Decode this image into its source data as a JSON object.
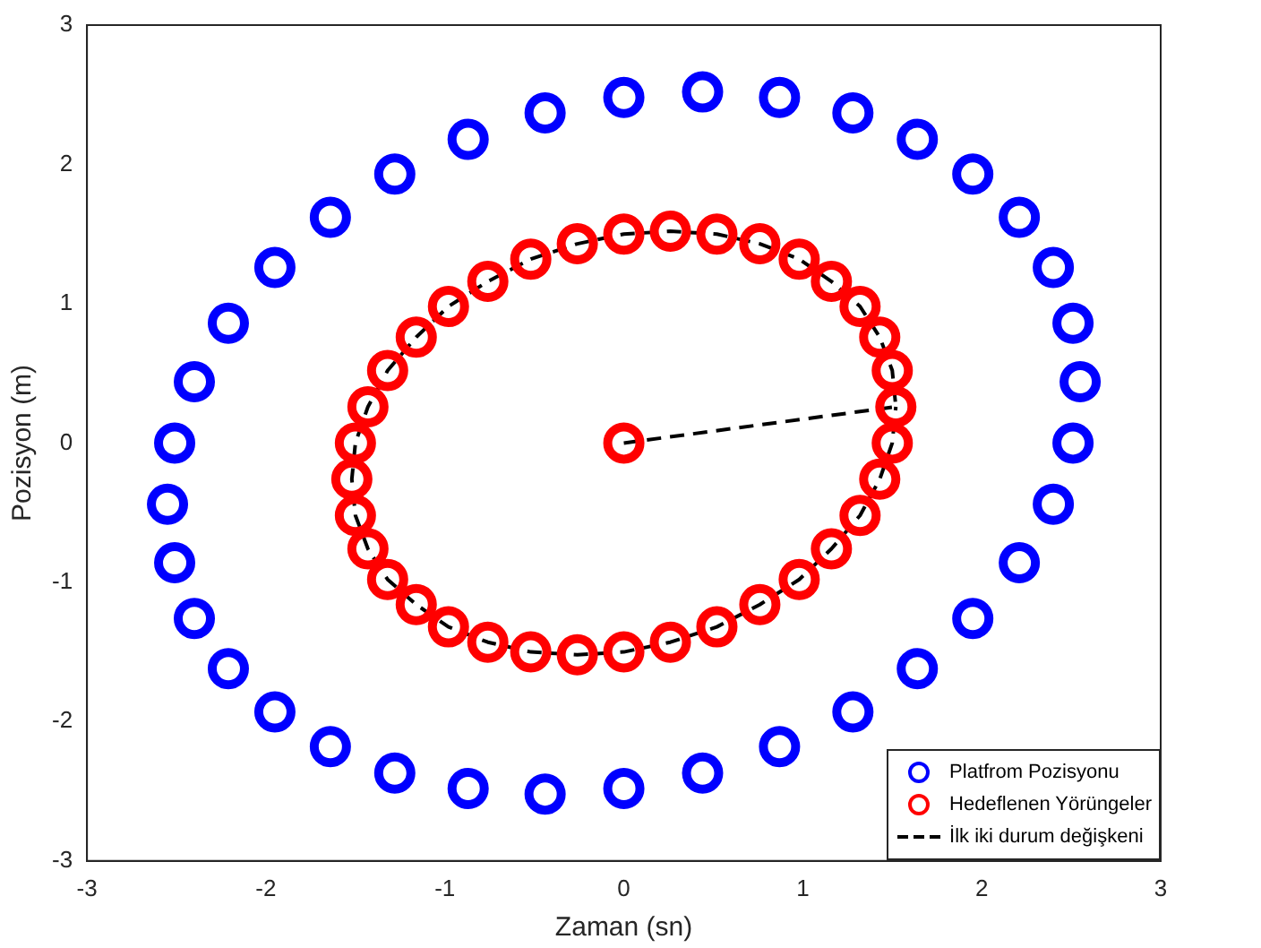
{
  "chart_data": {
    "type": "scatter",
    "xlabel": "Zaman (sn)",
    "ylabel": "Pozisyon (m)",
    "xlim": [
      -3,
      3
    ],
    "ylim": [
      -3,
      3
    ],
    "xticks": [
      -3,
      -2,
      -1,
      0,
      1,
      2,
      3
    ],
    "yticks": [
      -3,
      -2,
      -1,
      0,
      1,
      2,
      3
    ],
    "grid": false,
    "legend": "bottom right",
    "series": [
      {
        "name": "Platfrom Pozisyonu",
        "color": "#0000ff",
        "marker": "circle",
        "x": [
          2.55,
          2.51,
          2.4,
          2.21,
          1.95,
          1.64,
          1.28,
          0.87,
          0.44,
          0,
          -0.44,
          -0.87,
          -1.28,
          -1.64,
          -1.95,
          -2.21,
          -2.4,
          -2.51,
          -2.55,
          -2.51,
          -2.4,
          -2.21,
          -1.95,
          -1.64,
          -1.28,
          -0.87,
          -0.44,
          0,
          0.44,
          0.87,
          1.28,
          1.64,
          1.95,
          2.21,
          2.4,
          2.51
        ],
        "values": [
          0.44,
          0.86,
          1.26,
          1.62,
          1.93,
          2.18,
          2.37,
          2.48,
          2.52,
          2.48,
          2.37,
          2.18,
          1.93,
          1.62,
          1.26,
          0.86,
          0.44,
          0,
          -0.44,
          -0.86,
          -1.26,
          -1.62,
          -1.93,
          -2.18,
          -2.37,
          -2.48,
          -2.52,
          -2.48,
          -2.37,
          -2.18,
          -1.93,
          -1.62,
          -1.26,
          -0.86,
          -0.44,
          0
        ]
      },
      {
        "name": "Hedeflenen Yörüngeler",
        "color": "#ff0000",
        "marker": "circle",
        "x": [
          0,
          1.52,
          1.5,
          1.43,
          1.32,
          1.16,
          0.98,
          0.76,
          0.52,
          0.26,
          0,
          -0.26,
          -0.52,
          -0.76,
          -0.98,
          -1.16,
          -1.32,
          -1.43,
          -1.5,
          -1.52,
          -1.5,
          -1.43,
          -1.32,
          -1.16,
          -0.98,
          -0.76,
          -0.52,
          -0.26,
          0,
          0.26,
          0.52,
          0.76,
          0.98,
          1.16,
          1.32,
          1.43,
          1.5
        ],
        "values": [
          0,
          0.26,
          0.52,
          0.76,
          0.98,
          1.16,
          1.32,
          1.43,
          1.5,
          1.52,
          1.5,
          1.43,
          1.32,
          1.16,
          0.98,
          0.76,
          0.52,
          0.26,
          0,
          -0.26,
          -0.52,
          -0.76,
          -0.98,
          -1.16,
          -1.32,
          -1.43,
          -1.5,
          -1.52,
          -1.5,
          -1.43,
          -1.32,
          -1.16,
          -0.98,
          -0.76,
          -0.52,
          -0.26,
          0
        ]
      },
      {
        "name": "İlk iki durum değişkeni",
        "color": "#000000",
        "type": "line",
        "line_style": "dashed",
        "marker": "none",
        "x": [
          0,
          1.52,
          1.5,
          1.43,
          1.32,
          1.16,
          0.98,
          0.76,
          0.52,
          0.26,
          0,
          -0.26,
          -0.52,
          -0.76,
          -0.98,
          -1.16,
          -1.32,
          -1.43,
          -1.5,
          -1.52,
          -1.5,
          -1.43,
          -1.32,
          -1.16,
          -0.98,
          -0.76,
          -0.52,
          -0.26,
          0,
          0.26,
          0.52,
          0.76,
          0.98,
          1.16,
          1.32,
          1.43,
          1.5,
          1.52
        ],
        "values": [
          0,
          0.26,
          0.52,
          0.76,
          0.98,
          1.16,
          1.32,
          1.43,
          1.5,
          1.52,
          1.5,
          1.43,
          1.32,
          1.16,
          0.98,
          0.76,
          0.52,
          0.26,
          0,
          -0.26,
          -0.52,
          -0.76,
          -0.98,
          -1.16,
          -1.32,
          -1.43,
          -1.5,
          -1.52,
          -1.5,
          -1.43,
          -1.32,
          -1.16,
          -0.98,
          -0.76,
          -0.52,
          -0.26,
          0,
          0.26
        ]
      }
    ]
  }
}
